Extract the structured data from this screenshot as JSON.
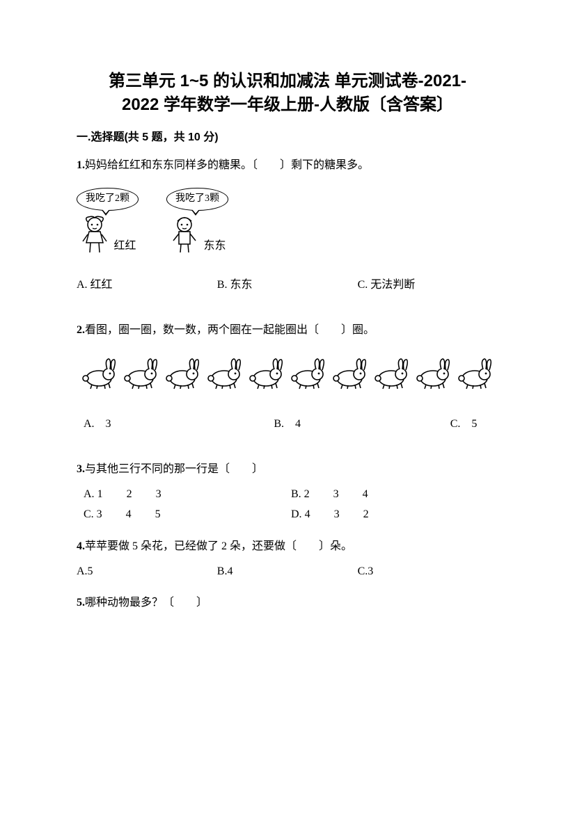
{
  "title_line1": "第三单元 1~5 的认识和加减法 单元测试卷-2021-",
  "title_line2": "2022 学年数学一年级上册-人教版〔含答案〕",
  "section1": "一.选择题(共 5 题，共 10 分)",
  "q1": {
    "num": "1.",
    "text": "妈妈给红红和东东同样多的糖果。〔　　〕剩下的糖果多。",
    "bubble1": "我吃了2颗",
    "bubble2": "我吃了3颗",
    "name1": "红红",
    "name2": "东东",
    "optA": "A. 红红",
    "optB": "B. 东东",
    "optC": "C. 无法判断"
  },
  "q2": {
    "num": "2.",
    "text": "看图，圈一圈，数一数，两个圈在一起能圈出〔　　〕圈。",
    "optA": "A.　3",
    "optB": "B.　4",
    "optC": "C.　5",
    "rabbit_count": 10
  },
  "q3": {
    "num": "3.",
    "text": "与其他三行不同的那一行是〔　　〕",
    "optA_label": "A.",
    "optA_seq": [
      "1",
      "2",
      "3"
    ],
    "optB_label": "B.",
    "optB_seq": [
      "2",
      "3",
      "4"
    ],
    "optC_label": "C.",
    "optC_seq": [
      "3",
      "4",
      "5"
    ],
    "optD_label": "D.",
    "optD_seq": [
      "4",
      "3",
      "2"
    ]
  },
  "q4": {
    "num": "4.",
    "text": "苹苹要做 5 朵花，已经做了 2 朵，还要做〔　　〕朵。",
    "optA": "A.5",
    "optB": "B.4",
    "optC": "C.3"
  },
  "q5": {
    "num": "5.",
    "text": "哪种动物最多？〔　　〕"
  },
  "colors": {
    "text": "#000000",
    "background": "#ffffff"
  }
}
